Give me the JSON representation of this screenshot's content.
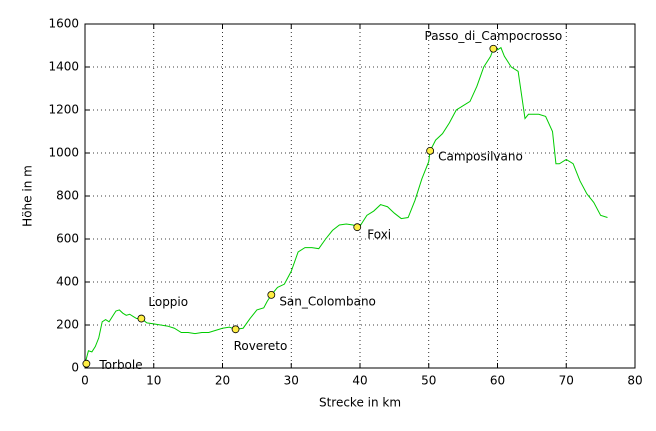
{
  "chart_data": {
    "type": "line",
    "x_label": "Strecke in km",
    "y_label": "Höhe in m",
    "xlim": [
      0,
      80
    ],
    "xticks": [
      0,
      10,
      20,
      30,
      40,
      50,
      60,
      70,
      80
    ],
    "ylim": [
      0,
      1600
    ],
    "yticks": [
      0,
      200,
      400,
      600,
      800,
      1000,
      1200,
      1400,
      1600
    ],
    "grid": true,
    "series": [
      {
        "color": "#00cc00",
        "x": [
          0,
          0.5,
          1,
          1.5,
          2,
          2.5,
          3,
          3.5,
          4,
          4.5,
          5,
          5.5,
          6,
          6.5,
          7,
          7.5,
          8.2,
          9,
          10,
          11,
          12,
          13,
          14,
          15,
          16,
          17,
          18,
          19,
          20,
          21,
          21.9,
          23,
          24,
          25,
          26,
          26.5,
          27.1,
          28,
          29,
          30,
          31,
          32,
          33,
          34,
          35,
          36,
          37,
          38,
          39,
          39.6,
          40,
          41,
          42,
          43,
          44,
          45,
          46,
          47,
          48,
          49,
          50,
          50.2,
          51,
          52,
          53,
          54,
          55,
          56,
          57,
          58,
          59,
          59.4,
          60,
          60.5,
          61,
          62,
          63,
          64,
          64.5,
          66,
          67,
          68,
          68.5,
          69,
          70,
          71,
          72,
          73,
          74,
          75,
          76
        ],
        "values": [
          20,
          80,
          75,
          100,
          140,
          215,
          225,
          215,
          240,
          265,
          270,
          255,
          245,
          250,
          240,
          230,
          230,
          210,
          205,
          200,
          195,
          185,
          165,
          165,
          160,
          165,
          165,
          175,
          185,
          190,
          180,
          185,
          230,
          270,
          280,
          310,
          340,
          375,
          390,
          450,
          540,
          560,
          560,
          555,
          600,
          640,
          665,
          670,
          665,
          655,
          660,
          710,
          730,
          760,
          750,
          720,
          695,
          700,
          780,
          880,
          960,
          1010,
          1060,
          1090,
          1140,
          1200,
          1220,
          1240,
          1310,
          1400,
          1450,
          1485,
          1480,
          1490,
          1450,
          1400,
          1380,
          1160,
          1180,
          1180,
          1170,
          1100,
          950,
          950,
          970,
          950,
          870,
          810,
          770,
          710,
          700
        ]
      }
    ],
    "waypoints": {
      "color": "#ffee44",
      "names": [
        "Torbole",
        "Loppio",
        "Rovereto",
        "San_Colombano",
        "Foxi",
        "Camposilvano",
        "Passo_di_Campocrosso"
      ],
      "x": [
        0.2,
        8.2,
        21.9,
        27.1,
        39.6,
        50.2,
        59.4
      ],
      "values": [
        20,
        230,
        180,
        340,
        655,
        1010,
        1485
      ]
    }
  }
}
